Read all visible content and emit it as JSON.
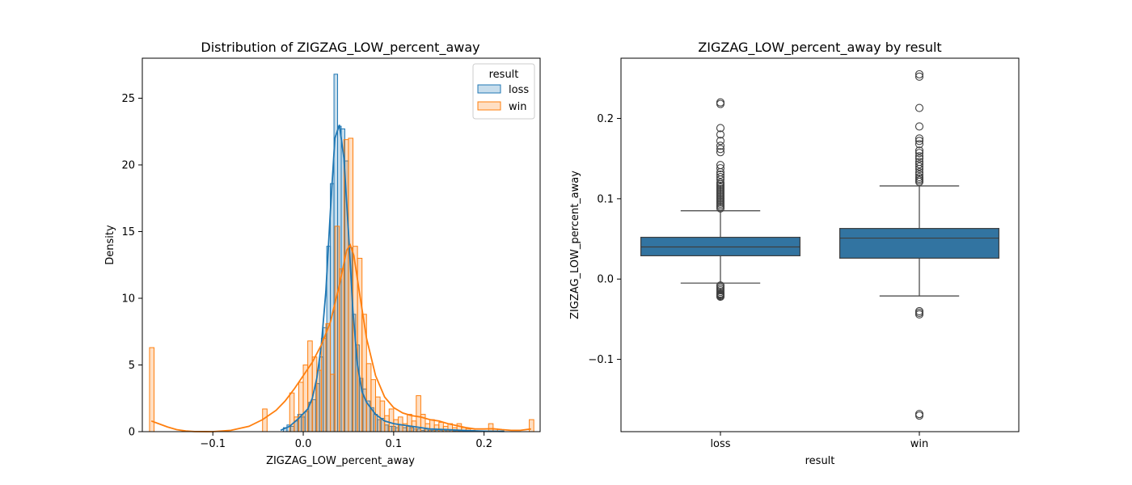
{
  "chart_data": [
    {
      "type": "histogram",
      "title": "Distribution of ZIGZAG_LOW_percent_away",
      "xlabel": "ZIGZAG_LOW_percent_away",
      "ylabel": "Density",
      "xlim": [
        -0.178,
        0.262
      ],
      "ylim": [
        0,
        28
      ],
      "xticks": [
        -0.1,
        0.0,
        0.1,
        0.2
      ],
      "xtick_labels": [
        "−0.1",
        "0.0",
        "0.1",
        "0.2"
      ],
      "yticks": [
        0,
        5,
        10,
        15,
        20,
        25
      ],
      "ytick_labels": [
        "0",
        "5",
        "10",
        "15",
        "20",
        "25"
      ],
      "grid": false,
      "legend": {
        "title": "result",
        "placement": "top-right",
        "entries": [
          "loss",
          "win"
        ]
      },
      "series": [
        {
          "name": "loss",
          "color": "#1f77b4",
          "fill": "rgba(31,119,180,0.25)",
          "bins": [
            [
              -0.022,
              -0.018,
              0.3
            ],
            [
              -0.018,
              -0.014,
              0.5
            ],
            [
              -0.014,
              -0.01,
              0.4
            ],
            [
              -0.01,
              -0.006,
              0.8
            ],
            [
              -0.006,
              -0.002,
              1.3
            ],
            [
              -0.002,
              0.002,
              1.1
            ],
            [
              0.002,
              0.006,
              1.5
            ],
            [
              0.006,
              0.01,
              2.2
            ],
            [
              0.01,
              0.014,
              2.4
            ],
            [
              0.014,
              0.018,
              3.6
            ],
            [
              0.018,
              0.022,
              5.6
            ],
            [
              0.022,
              0.026,
              7.8
            ],
            [
              0.026,
              0.03,
              13.9
            ],
            [
              0.03,
              0.034,
              18.6
            ],
            [
              0.034,
              0.038,
              26.8
            ],
            [
              0.038,
              0.042,
              22.9
            ],
            [
              0.042,
              0.046,
              22.7
            ],
            [
              0.046,
              0.05,
              20.3
            ],
            [
              0.05,
              0.054,
              13.8
            ],
            [
              0.054,
              0.058,
              8.8
            ],
            [
              0.058,
              0.062,
              6.5
            ],
            [
              0.062,
              0.066,
              4.0
            ],
            [
              0.066,
              0.07,
              3.2
            ],
            [
              0.07,
              0.074,
              2.3
            ],
            [
              0.074,
              0.078,
              1.8
            ],
            [
              0.078,
              0.082,
              1.3
            ],
            [
              0.082,
              0.086,
              0.9
            ],
            [
              0.086,
              0.09,
              1.0
            ],
            [
              0.09,
              0.094,
              0.5
            ],
            [
              0.094,
              0.098,
              0.4
            ],
            [
              0.098,
              0.102,
              0.4
            ],
            [
              0.102,
              0.106,
              0.3
            ],
            [
              0.106,
              0.11,
              0.5
            ],
            [
              0.11,
              0.114,
              0.3
            ],
            [
              0.114,
              0.118,
              0.4
            ],
            [
              0.118,
              0.122,
              0.3
            ],
            [
              0.122,
              0.126,
              0.2
            ],
            [
              0.126,
              0.13,
              0.2
            ],
            [
              0.13,
              0.134,
              0.1
            ],
            [
              0.134,
              0.138,
              0.2
            ],
            [
              0.138,
              0.142,
              0.1
            ],
            [
              0.142,
              0.146,
              0.1
            ],
            [
              0.146,
              0.15,
              0.1
            ],
            [
              0.15,
              0.154,
              0.1
            ],
            [
              0.154,
              0.158,
              0.1
            ],
            [
              0.158,
              0.162,
              0.1
            ],
            [
              0.162,
              0.166,
              0.1
            ],
            [
              0.166,
              0.17,
              0.05
            ],
            [
              0.17,
              0.174,
              0.05
            ],
            [
              0.174,
              0.178,
              0.05
            ],
            [
              0.178,
              0.182,
              0.05
            ],
            [
              0.182,
              0.186,
              0.05
            ],
            [
              0.186,
              0.19,
              0.05
            ],
            [
              0.214,
              0.222,
              0.05
            ]
          ],
          "kde": [
            [
              -0.025,
              0.1
            ],
            [
              -0.015,
              0.4
            ],
            [
              -0.005,
              1.0
            ],
            [
              0.005,
              1.7
            ],
            [
              0.01,
              2.5
            ],
            [
              0.015,
              4.0
            ],
            [
              0.02,
              6.5
            ],
            [
              0.025,
              10.5
            ],
            [
              0.03,
              16.5
            ],
            [
              0.035,
              22.0
            ],
            [
              0.04,
              23.0
            ],
            [
              0.045,
              20.5
            ],
            [
              0.05,
              15.0
            ],
            [
              0.055,
              9.0
            ],
            [
              0.06,
              5.0
            ],
            [
              0.065,
              3.0
            ],
            [
              0.07,
              2.2
            ],
            [
              0.08,
              1.3
            ],
            [
              0.09,
              0.8
            ],
            [
              0.1,
              0.6
            ],
            [
              0.12,
              0.4
            ],
            [
              0.14,
              0.2
            ],
            [
              0.16,
              0.15
            ],
            [
              0.18,
              0.08
            ],
            [
              0.2,
              0.04
            ],
            [
              0.222,
              0.02
            ]
          ]
        },
        {
          "name": "win",
          "color": "#ff7f0e",
          "fill": "rgba(255,127,14,0.25)",
          "bins": [
            [
              -0.17,
              -0.165,
              6.3
            ],
            [
              -0.045,
              -0.04,
              1.7
            ],
            [
              -0.015,
              -0.01,
              2.9
            ],
            [
              -0.01,
              -0.005,
              1.1
            ],
            [
              -0.005,
              0.0,
              3.7
            ],
            [
              0.0,
              0.005,
              5.0
            ],
            [
              0.005,
              0.01,
              6.8
            ],
            [
              0.01,
              0.015,
              5.6
            ],
            [
              0.015,
              0.02,
              4.6
            ],
            [
              0.02,
              0.025,
              7.0
            ],
            [
              0.025,
              0.03,
              8.1
            ],
            [
              0.03,
              0.035,
              4.3
            ],
            [
              0.035,
              0.04,
              15.4
            ],
            [
              0.04,
              0.045,
              12.2
            ],
            [
              0.045,
              0.05,
              21.9
            ],
            [
              0.05,
              0.055,
              22.0
            ],
            [
              0.055,
              0.06,
              13.9
            ],
            [
              0.06,
              0.065,
              13.0
            ],
            [
              0.065,
              0.07,
              8.8
            ],
            [
              0.07,
              0.075,
              5.1
            ],
            [
              0.075,
              0.08,
              3.9
            ],
            [
              0.08,
              0.085,
              2.6
            ],
            [
              0.085,
              0.09,
              2.3
            ],
            [
              0.09,
              0.095,
              1.2
            ],
            [
              0.095,
              0.1,
              1.7
            ],
            [
              0.1,
              0.105,
              0.9
            ],
            [
              0.105,
              0.11,
              1.1
            ],
            [
              0.11,
              0.115,
              0.6
            ],
            [
              0.115,
              0.12,
              1.3
            ],
            [
              0.12,
              0.125,
              0.8
            ],
            [
              0.125,
              0.13,
              2.7
            ],
            [
              0.13,
              0.135,
              1.3
            ],
            [
              0.135,
              0.14,
              0.6
            ],
            [
              0.14,
              0.145,
              0.9
            ],
            [
              0.145,
              0.15,
              0.5
            ],
            [
              0.15,
              0.155,
              0.7
            ],
            [
              0.155,
              0.16,
              0.4
            ],
            [
              0.16,
              0.165,
              0.6
            ],
            [
              0.165,
              0.17,
              0.3
            ],
            [
              0.17,
              0.175,
              0.6
            ],
            [
              0.175,
              0.18,
              0.3
            ],
            [
              0.18,
              0.185,
              0.2
            ],
            [
              0.185,
              0.19,
              0.1
            ],
            [
              0.205,
              0.21,
              0.6
            ],
            [
              0.21,
              0.215,
              0.2
            ],
            [
              0.25,
              0.255,
              0.9
            ]
          ],
          "kde": [
            [
              -0.168,
              0.8
            ],
            [
              -0.16,
              0.6
            ],
            [
              -0.15,
              0.35
            ],
            [
              -0.14,
              0.15
            ],
            [
              -0.13,
              0.05
            ],
            [
              -0.12,
              0.01
            ],
            [
              -0.1,
              0.0
            ],
            [
              -0.08,
              0.1
            ],
            [
              -0.06,
              0.4
            ],
            [
              -0.045,
              0.9
            ],
            [
              -0.03,
              1.6
            ],
            [
              -0.02,
              2.3
            ],
            [
              -0.01,
              3.2
            ],
            [
              0.0,
              4.2
            ],
            [
              0.01,
              5.2
            ],
            [
              0.02,
              6.5
            ],
            [
              0.03,
              8.2
            ],
            [
              0.04,
              11.0
            ],
            [
              0.048,
              13.6
            ],
            [
              0.052,
              14.0
            ],
            [
              0.056,
              13.2
            ],
            [
              0.062,
              10.5
            ],
            [
              0.07,
              7.0
            ],
            [
              0.08,
              4.2
            ],
            [
              0.09,
              2.6
            ],
            [
              0.1,
              1.8
            ],
            [
              0.11,
              1.4
            ],
            [
              0.12,
              1.2
            ],
            [
              0.13,
              1.1
            ],
            [
              0.14,
              0.9
            ],
            [
              0.15,
              0.8
            ],
            [
              0.16,
              0.6
            ],
            [
              0.17,
              0.45
            ],
            [
              0.18,
              0.3
            ],
            [
              0.19,
              0.2
            ],
            [
              0.2,
              0.2
            ],
            [
              0.21,
              0.22
            ],
            [
              0.22,
              0.15
            ],
            [
              0.23,
              0.1
            ],
            [
              0.24,
              0.1
            ],
            [
              0.252,
              0.2
            ]
          ]
        }
      ]
    },
    {
      "type": "box",
      "title": "ZIGZAG_LOW_percent_away by result",
      "xlabel": "result",
      "ylabel": "ZIGZAG_LOW_percent_away",
      "categories": [
        "loss",
        "win"
      ],
      "ylim": [
        -0.19,
        0.275
      ],
      "yticks": [
        -0.1,
        0.0,
        0.1,
        0.2
      ],
      "ytick_labels": [
        "−0.1",
        "0.0",
        "0.1",
        "0.2"
      ],
      "grid": false,
      "box_color": "#3274a1",
      "series": [
        {
          "name": "loss",
          "q1": 0.029,
          "median": 0.04,
          "q3": 0.052,
          "whisker_low": -0.005,
          "whisker_high": 0.085,
          "outliers": [
            -0.022,
            -0.021,
            -0.02,
            -0.019,
            -0.018,
            -0.016,
            -0.014,
            -0.012,
            -0.01,
            -0.008,
            0.088,
            0.09,
            0.092,
            0.094,
            0.096,
            0.098,
            0.1,
            0.102,
            0.104,
            0.106,
            0.108,
            0.11,
            0.112,
            0.114,
            0.116,
            0.118,
            0.12,
            0.124,
            0.127,
            0.13,
            0.133,
            0.138,
            0.142,
            0.158,
            0.162,
            0.166,
            0.172,
            0.18,
            0.188,
            0.218,
            0.22
          ]
        },
        {
          "name": "win",
          "q1": 0.026,
          "median": 0.051,
          "q3": 0.063,
          "whisker_low": -0.021,
          "whisker_high": 0.116,
          "outliers": [
            -0.17,
            -0.168,
            -0.044,
            -0.042,
            -0.04,
            0.121,
            0.123,
            0.125,
            0.127,
            0.13,
            0.133,
            0.137,
            0.14,
            0.143,
            0.146,
            0.15,
            0.153,
            0.157,
            0.16,
            0.168,
            0.172,
            0.175,
            0.19,
            0.213,
            0.252,
            0.255
          ]
        }
      ]
    }
  ]
}
